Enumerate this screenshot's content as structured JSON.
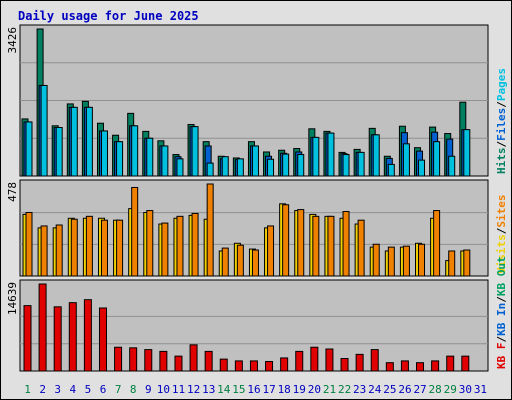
{
  "title": "Daily usage for June 2025",
  "colors": {
    "background": "#e0e0e0",
    "plot_bg": "#c0c0c0",
    "title": "#0000c0",
    "hits": "#008060",
    "files": "#0060d0",
    "pages": "#00c0e0",
    "visits": "#f0d000",
    "sites": "#f08000",
    "kbin": "#0060d0",
    "kbout": "#00a060",
    "kbf": "#e00000",
    "weekend": "#008040",
    "weekday": "#0000c0"
  },
  "chart_data": [
    {
      "type": "bar",
      "id": "hits-files-pages",
      "ylabel_max": "3426",
      "ylim": [
        0,
        3426
      ],
      "legend_right": [
        {
          "label": "Hits",
          "color_key": "hits"
        },
        {
          "label": "/",
          "color_key": "sep"
        },
        {
          "label": "Files",
          "color_key": "files"
        },
        {
          "label": "/",
          "color_key": "sep"
        },
        {
          "label": "Pages",
          "color_key": "pages"
        }
      ],
      "categories": [
        "1",
        "2",
        "3",
        "4",
        "5",
        "6",
        "7",
        "8",
        "9",
        "10",
        "11",
        "12",
        "13",
        "14",
        "15",
        "16",
        "17",
        "18",
        "19",
        "20",
        "21",
        "22",
        "23",
        "24",
        "25",
        "26",
        "27",
        "28",
        "29",
        "30",
        "31"
      ],
      "series": [
        {
          "name": "Hits",
          "color_key": "hits",
          "values": [
            1330,
            3426,
            1170,
            1680,
            1740,
            1230,
            950,
            1460,
            1040,
            820,
            500,
            1200,
            800,
            460,
            420,
            800,
            560,
            600,
            640,
            1100,
            1040,
            550,
            620,
            1110,
            460,
            1160,
            660,
            1140,
            990,
            1720,
            0
          ]
        },
        {
          "name": "Files",
          "color_key": "files",
          "values": [
            1260,
            2110,
            1130,
            1600,
            1600,
            1050,
            800,
            1170,
            880,
            700,
            450,
            1150,
            700,
            400,
            380,
            700,
            460,
            530,
            560,
            900,
            1000,
            520,
            550,
            960,
            410,
            1010,
            580,
            1020,
            860,
            1080,
            0
          ]
        },
        {
          "name": "Pages",
          "color_key": "pages",
          "values": [
            1260,
            2110,
            1130,
            1600,
            1600,
            1050,
            800,
            1170,
            880,
            700,
            400,
            1150,
            300,
            450,
            400,
            700,
            390,
            510,
            500,
            900,
            1000,
            500,
            550,
            960,
            270,
            750,
            370,
            800,
            460,
            1080,
            0
          ]
        }
      ]
    },
    {
      "type": "bar",
      "id": "visits-sites",
      "ylabel_max": "478",
      "ylim": [
        0,
        478
      ],
      "legend_right": [
        {
          "label": "Visits",
          "color_key": "visits"
        },
        {
          "label": "/",
          "color_key": "sep"
        },
        {
          "label": "Sites",
          "color_key": "sites"
        }
      ],
      "categories": [
        "1",
        "2",
        "3",
        "4",
        "5",
        "6",
        "7",
        "8",
        "9",
        "10",
        "11",
        "12",
        "13",
        "14",
        "15",
        "16",
        "17",
        "18",
        "19",
        "20",
        "21",
        "22",
        "23",
        "24",
        "25",
        "26",
        "27",
        "28",
        "29",
        "30",
        "31"
      ],
      "series": [
        {
          "name": "Visits",
          "color_key": "visits",
          "values": [
            320,
            250,
            250,
            300,
            300,
            300,
            290,
            350,
            330,
            270,
            300,
            315,
            295,
            130,
            170,
            140,
            250,
            375,
            340,
            320,
            310,
            300,
            270,
            150,
            130,
            150,
            170,
            300,
            80,
            130,
            0
          ]
        },
        {
          "name": "Sites",
          "color_key": "sites",
          "values": [
            330,
            260,
            265,
            295,
            310,
            290,
            290,
            460,
            340,
            275,
            310,
            325,
            478,
            145,
            160,
            135,
            260,
            370,
            345,
            310,
            310,
            335,
            290,
            165,
            150,
            155,
            165,
            340,
            130,
            135,
            0
          ]
        }
      ]
    },
    {
      "type": "bar",
      "id": "kbytes",
      "ylabel_max": "14639",
      "ylim": [
        0,
        14639
      ],
      "legend_right": [
        {
          "label": "KB F",
          "color_key": "kbf"
        },
        {
          "label": "/",
          "color_key": "sep"
        },
        {
          "label": "KB In",
          "color_key": "kbin"
        },
        {
          "label": "/",
          "color_key": "sep"
        },
        {
          "label": "KB Out",
          "color_key": "kbout"
        }
      ],
      "categories": [
        "1",
        "2",
        "3",
        "4",
        "5",
        "6",
        "7",
        "8",
        "9",
        "10",
        "11",
        "12",
        "13",
        "14",
        "15",
        "16",
        "17",
        "18",
        "19",
        "20",
        "21",
        "22",
        "23",
        "24",
        "25",
        "26",
        "27",
        "28",
        "29",
        "30",
        "31"
      ],
      "series": [
        {
          "name": "KB F",
          "color_key": "kbf",
          "values": [
            11000,
            14639,
            10800,
            11500,
            12000,
            10600,
            4000,
            3900,
            3600,
            3300,
            2500,
            4400,
            3300,
            2000,
            1700,
            1700,
            1600,
            2200,
            3300,
            4000,
            3700,
            2100,
            2800,
            3600,
            1400,
            1700,
            1400,
            1700,
            2500,
            2500,
            0
          ]
        }
      ]
    }
  ],
  "x_labels": [
    {
      "label": "1",
      "weekend": true
    },
    {
      "label": "2",
      "weekend": false
    },
    {
      "label": "3",
      "weekend": false
    },
    {
      "label": "4",
      "weekend": false
    },
    {
      "label": "5",
      "weekend": false
    },
    {
      "label": "6",
      "weekend": false
    },
    {
      "label": "7",
      "weekend": true
    },
    {
      "label": "8",
      "weekend": true
    },
    {
      "label": "9",
      "weekend": false
    },
    {
      "label": "10",
      "weekend": false
    },
    {
      "label": "11",
      "weekend": false
    },
    {
      "label": "12",
      "weekend": false
    },
    {
      "label": "13",
      "weekend": false
    },
    {
      "label": "14",
      "weekend": true
    },
    {
      "label": "15",
      "weekend": true
    },
    {
      "label": "16",
      "weekend": false
    },
    {
      "label": "17",
      "weekend": false
    },
    {
      "label": "18",
      "weekend": false
    },
    {
      "label": "19",
      "weekend": false
    },
    {
      "label": "20",
      "weekend": false
    },
    {
      "label": "21",
      "weekend": true
    },
    {
      "label": "22",
      "weekend": true
    },
    {
      "label": "23",
      "weekend": false
    },
    {
      "label": "24",
      "weekend": false
    },
    {
      "label": "25",
      "weekend": false
    },
    {
      "label": "26",
      "weekend": false
    },
    {
      "label": "27",
      "weekend": false
    },
    {
      "label": "28",
      "weekend": true
    },
    {
      "label": "29",
      "weekend": true
    },
    {
      "label": "30",
      "weekend": false
    },
    {
      "label": "31",
      "weekend": false
    }
  ]
}
